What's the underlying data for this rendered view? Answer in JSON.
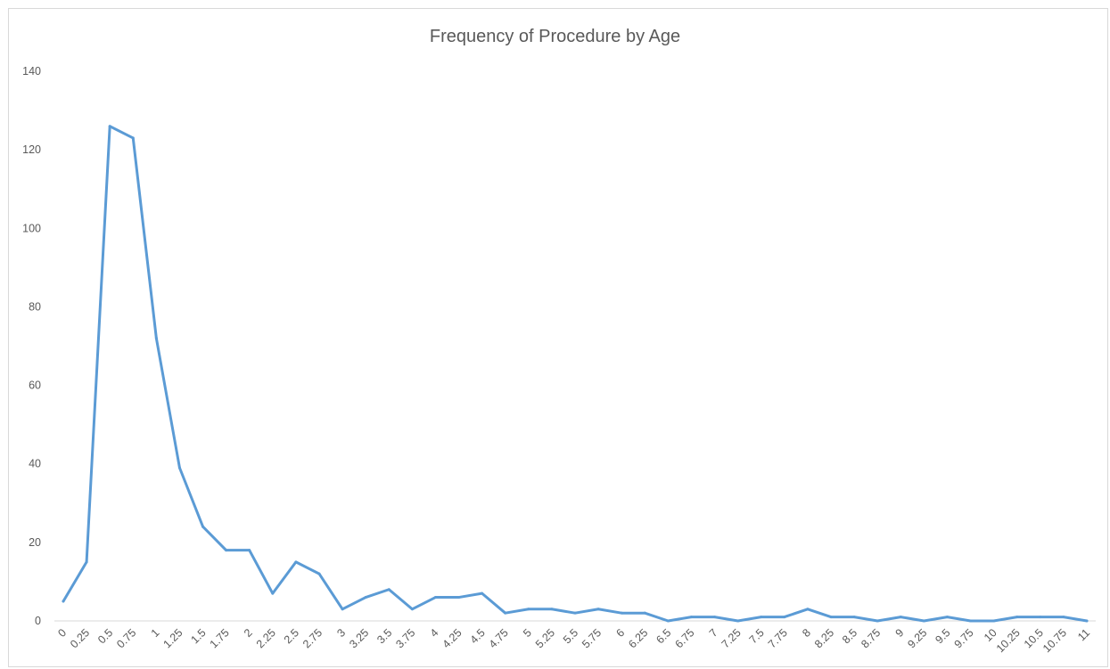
{
  "chart_data": {
    "type": "line",
    "title": "Frequency of Procedure by Age",
    "xlabel": "",
    "ylabel": "",
    "ylim": [
      0,
      140
    ],
    "yticks": [
      "0",
      "20",
      "40",
      "60",
      "80",
      "100",
      "120",
      "140"
    ],
    "grid": false,
    "legend": "none",
    "categories": [
      "0",
      "0.25",
      "0.5",
      "0.75",
      "1",
      "1.25",
      "1.5",
      "1.75",
      "2",
      "2.25",
      "2.5",
      "2.75",
      "3",
      "3.25",
      "3.5",
      "3.75",
      "4",
      "4.25",
      "4.5",
      "4.75",
      "5",
      "5.25",
      "5.5",
      "5.75",
      "6",
      "6.25",
      "6.5",
      "6.75",
      "7",
      "7.25",
      "7.5",
      "7.75",
      "8",
      "8.25",
      "8.5",
      "8.75",
      "9",
      "9.25",
      "9.5",
      "9.75",
      "10",
      "10.25",
      "10.5",
      "10.75",
      "11"
    ],
    "series": [
      {
        "values": [
          5,
          15,
          126,
          123,
          72,
          39,
          24,
          18,
          18,
          7,
          15,
          12,
          3,
          6,
          8,
          3,
          6,
          6,
          7,
          2,
          3,
          3,
          2,
          3,
          2,
          2,
          0,
          1,
          1,
          0,
          1,
          1,
          3,
          1,
          1,
          0,
          1,
          0,
          1,
          0,
          0,
          1,
          1,
          1,
          0
        ]
      }
    ],
    "colors": {
      "line": "#5b9bd5",
      "axis": "#d9d9d9",
      "text": "#595959"
    }
  }
}
